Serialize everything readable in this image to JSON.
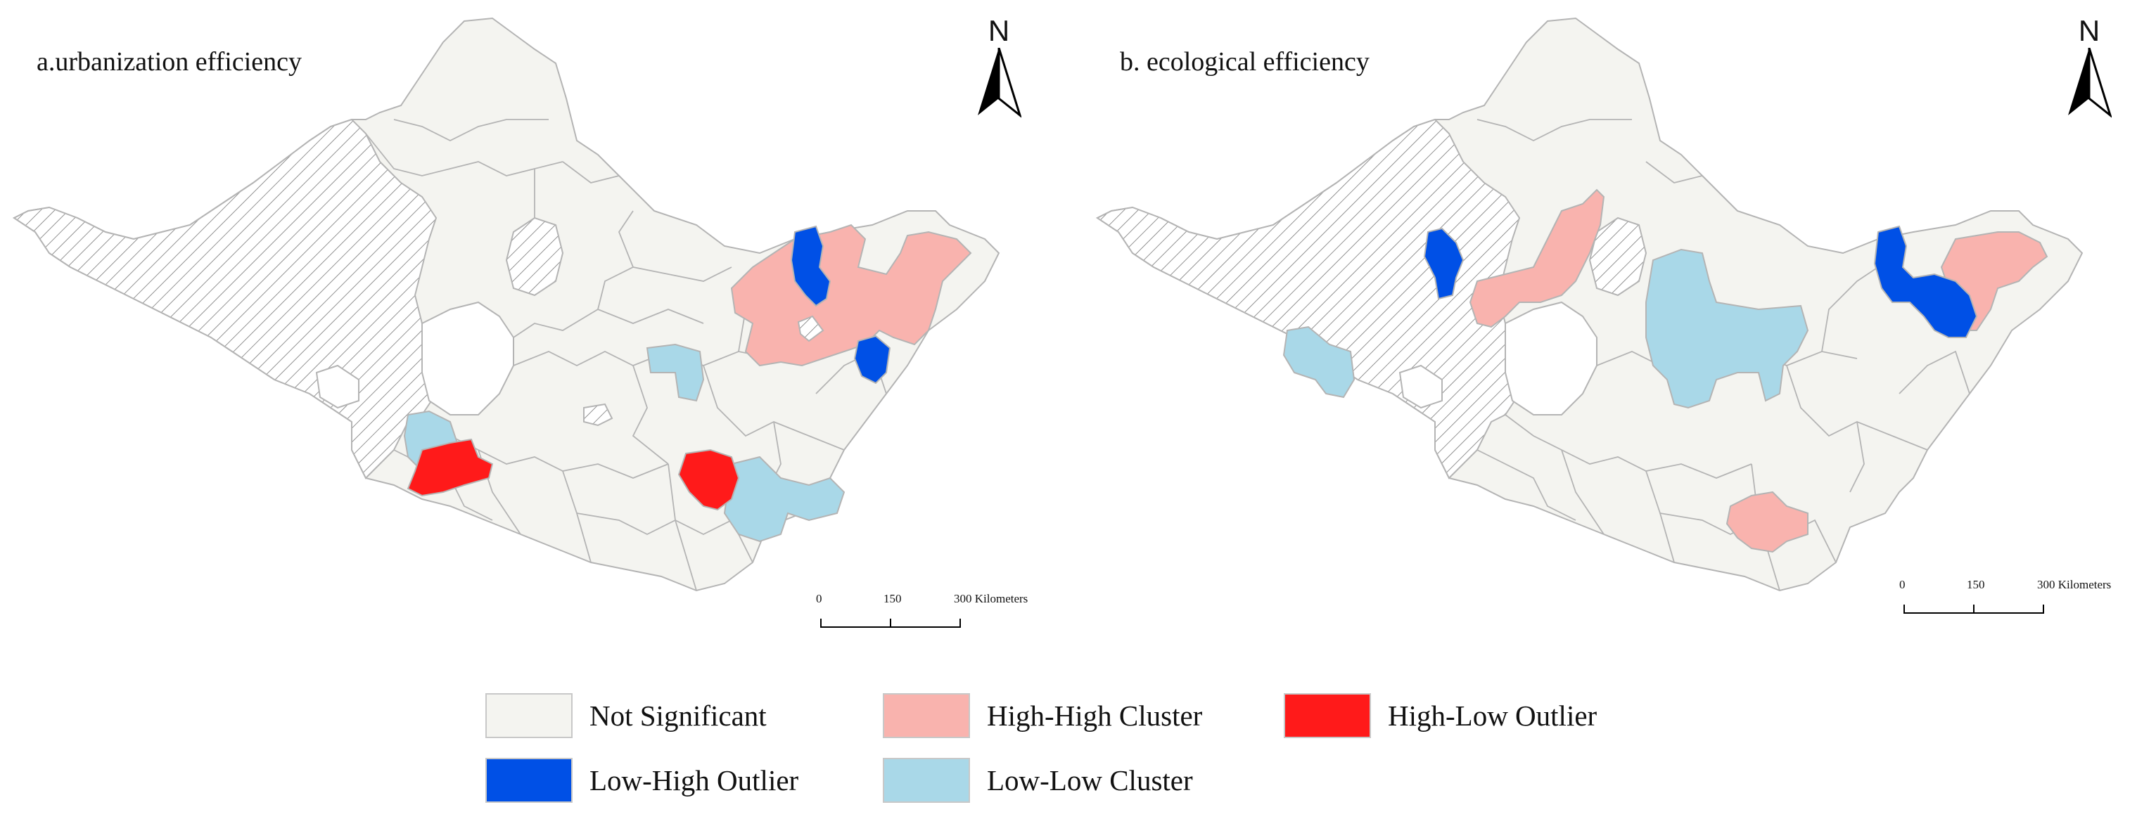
{
  "colors": {
    "not_significant": "#f4f4f0",
    "high_high": "#f9b3ae",
    "high_low": "#ff1a1a",
    "low_high": "#0050e6",
    "low_low": "#a9d8e8",
    "boundary": "#b4b4b4"
  },
  "panels": [
    {
      "title": "a.urbanization efficiency",
      "north_label": "N",
      "scale": {
        "ticks": [
          "0",
          "150",
          "300 Kilometers"
        ]
      }
    },
    {
      "title": "b. ecological efficiency",
      "north_label": "N",
      "scale": {
        "ticks": [
          "0",
          "150",
          "300 Kilometers"
        ]
      }
    }
  ],
  "legend": {
    "items": [
      {
        "label": "Not Significant",
        "color_key": "not_significant"
      },
      {
        "label": "High-High Cluster",
        "color_key": "high_high"
      },
      {
        "label": "High-Low Outlier",
        "color_key": "high_low"
      },
      {
        "label": "Low-High Outlier",
        "color_key": "low_high"
      },
      {
        "label": "Low-Low Cluster",
        "color_key": "low_low"
      }
    ]
  }
}
